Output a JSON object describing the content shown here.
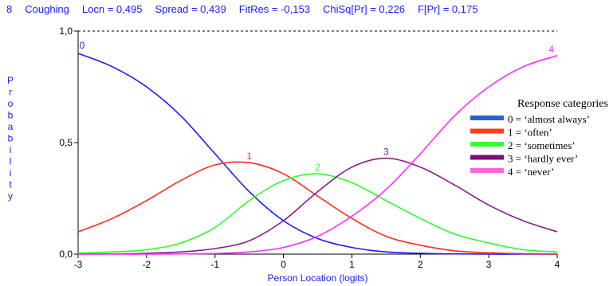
{
  "header": {
    "item_number": "8",
    "item_name": "Coughing",
    "locn": "Locn = 0,495",
    "spread": "Spread = 0,439",
    "fitres": "FitRes = -0,153",
    "chisq": "ChiSq[Pr] = 0,226",
    "f": "F[Pr] = 0,175"
  },
  "chart_data": {
    "type": "line",
    "xlabel": "Person Location (logits)",
    "ylabel": "Probability",
    "xlim": [
      -3,
      4
    ],
    "ylim": [
      0,
      1
    ],
    "x_ticks": [
      "-3",
      "-2",
      "-1",
      "0",
      "1",
      "2",
      "3",
      "4"
    ],
    "y_ticks": [
      "0,0",
      "0,5",
      "1,0"
    ],
    "legend_title": "Response categories",
    "legend_position": "right",
    "x": [
      -3,
      -2.5,
      -2,
      -1.5,
      -1,
      -0.5,
      0,
      0.5,
      1,
      1.5,
      2,
      2.5,
      3,
      3.5,
      4
    ],
    "series": [
      {
        "name": "0 = ‘almost always’",
        "curve_label": "0",
        "color": "#1a1aff",
        "legend_color": "#2b64c8",
        "values": [
          0.9,
          0.84,
          0.75,
          0.62,
          0.45,
          0.28,
          0.15,
          0.07,
          0.03,
          0.01,
          0.004,
          0.001,
          0.0,
          0.0,
          0.0
        ]
      },
      {
        "name": "1 = ‘often’",
        "curve_label": "1",
        "color": "#ff2b1a",
        "legend_color": "#ff3b1f",
        "values": [
          0.1,
          0.16,
          0.24,
          0.33,
          0.4,
          0.41,
          0.36,
          0.26,
          0.16,
          0.08,
          0.04,
          0.015,
          0.006,
          0.002,
          0.0
        ]
      },
      {
        "name": "2 = ‘sometimes’",
        "curve_label": "2",
        "color": "#2bff2b",
        "legend_color": "#33ff33",
        "values": [
          0.005,
          0.01,
          0.02,
          0.05,
          0.12,
          0.24,
          0.33,
          0.36,
          0.32,
          0.24,
          0.16,
          0.09,
          0.05,
          0.02,
          0.01
        ]
      },
      {
        "name": "3 = ‘hardly ever’",
        "curve_label": "3",
        "color": "#8c1a8c",
        "legend_color": "#7a0f7a",
        "values": [
          0.0,
          0.001,
          0.004,
          0.01,
          0.025,
          0.06,
          0.15,
          0.28,
          0.39,
          0.43,
          0.39,
          0.31,
          0.22,
          0.15,
          0.1
        ]
      },
      {
        "name": "4 = ‘never’",
        "curve_label": "4",
        "color": "#ff2bff",
        "legend_color": "#ff66dd",
        "values": [
          0.0,
          0.0,
          0.0,
          0.001,
          0.003,
          0.01,
          0.03,
          0.08,
          0.17,
          0.29,
          0.45,
          0.62,
          0.75,
          0.84,
          0.89
        ]
      }
    ]
  }
}
